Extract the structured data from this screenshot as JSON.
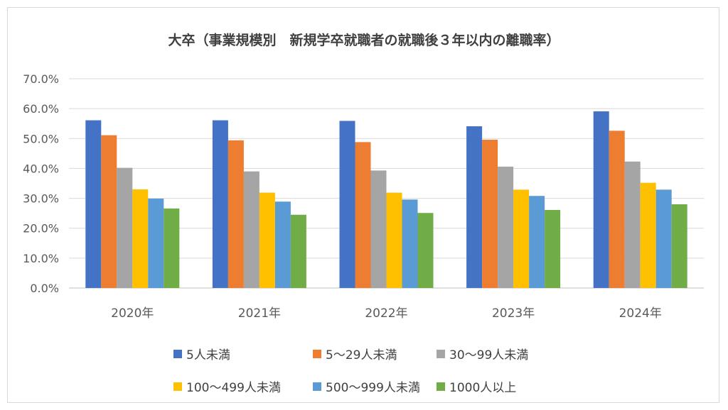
{
  "chart_data": {
    "type": "bar",
    "title": "大卒（事業規模別　新規学卒就職者の就職後３年以内の離職率）",
    "categories": [
      "2020年",
      "2021年",
      "2022年",
      "2023年",
      "2024年"
    ],
    "series": [
      {
        "name": "5人未満",
        "color": "#4472C4",
        "values": [
          56.1,
          56.1,
          55.9,
          54.1,
          59.1
        ]
      },
      {
        "name": "5～29人未満",
        "color": "#ED7D31",
        "values": [
          51.1,
          49.4,
          48.8,
          49.6,
          52.6
        ]
      },
      {
        "name": "30～99人未満",
        "color": "#A5A5A5",
        "values": [
          40.2,
          39.0,
          39.3,
          40.6,
          42.3
        ]
      },
      {
        "name": "100～499人未満",
        "color": "#FFC000",
        "values": [
          33.0,
          31.9,
          31.9,
          32.9,
          35.2
        ]
      },
      {
        "name": "500～999人未満",
        "color": "#5B9BD5",
        "values": [
          29.9,
          28.9,
          29.6,
          30.8,
          32.9
        ]
      },
      {
        "name": "1000人以上",
        "color": "#70AD47",
        "values": [
          26.6,
          24.5,
          25.1,
          26.1,
          28.0
        ]
      }
    ],
    "yticks": [
      "0.0%",
      "10.0%",
      "20.0%",
      "30.0%",
      "40.0%",
      "50.0%",
      "60.0%",
      "70.0%"
    ],
    "ylim": [
      0,
      70
    ],
    "grid": true,
    "legend_position": "bottom"
  }
}
